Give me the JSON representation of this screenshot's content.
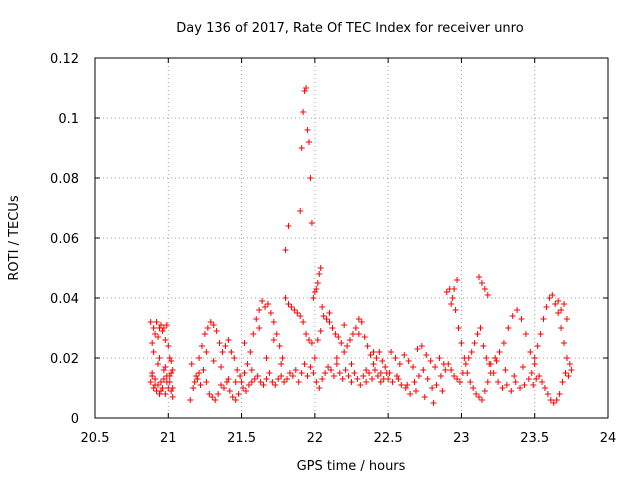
{
  "chart_data": {
    "type": "scatter",
    "title": "Day 136 of 2017, Rate Of TEC Index for receiver unro",
    "xlabel": "GPS time / hours",
    "ylabel": "ROTI / TECUs",
    "xlim": [
      20.5,
      24
    ],
    "ylim": [
      0,
      0.12
    ],
    "xticks": [
      "20.5",
      "21",
      "21.5",
      "22",
      "22.5",
      "23",
      "23.5",
      "24"
    ],
    "xtick_values": [
      20.5,
      21,
      21.5,
      22,
      22.5,
      23,
      23.5,
      24
    ],
    "yticks": [
      "0",
      "0.02",
      "0.04",
      "0.06",
      "0.08",
      "0.1",
      "0.12"
    ],
    "ytick_values": [
      0,
      0.02,
      0.04,
      0.06,
      0.08,
      0.1,
      0.12
    ],
    "grid": true,
    "marker": "+",
    "color": "#ff0000",
    "series": [
      {
        "name": "ROTI",
        "x": [
          20.88,
          20.89,
          20.9,
          20.91,
          20.92,
          20.93,
          20.94,
          20.95,
          20.96,
          20.97,
          20.98,
          20.99,
          21.0,
          21.01,
          21.02,
          21.03,
          20.88,
          20.89,
          20.9,
          20.91,
          20.92,
          20.93,
          20.94,
          20.95,
          20.96,
          20.97,
          20.98,
          20.99,
          21.0,
          21.01,
          21.02,
          21.03,
          20.89,
          20.91,
          20.93,
          20.95,
          20.97,
          20.99,
          21.01,
          21.03,
          20.9,
          20.94,
          20.98,
          21.02,
          21.15,
          21.17,
          21.19,
          21.21,
          21.23,
          21.25,
          21.27,
          21.29,
          21.31,
          21.33,
          21.35,
          21.37,
          21.39,
          21.41,
          21.43,
          21.45,
          21.47,
          21.49,
          21.18,
          21.2,
          21.22,
          21.24,
          21.26,
          21.28,
          21.3,
          21.32,
          21.34,
          21.36,
          21.38,
          21.4,
          21.42,
          21.44,
          21.46,
          21.48,
          21.16,
          21.21,
          21.26,
          21.31,
          21.36,
          21.41,
          21.46,
          21.5,
          21.52,
          21.54,
          21.56,
          21.58,
          21.6,
          21.62,
          21.64,
          21.66,
          21.68,
          21.7,
          21.72,
          21.74,
          21.76,
          21.78,
          21.51,
          21.53,
          21.55,
          21.57,
          21.59,
          21.61,
          21.63,
          21.65,
          21.67,
          21.69,
          21.71,
          21.73,
          21.75,
          21.77,
          21.79,
          21.52,
          21.57,
          21.62,
          21.67,
          21.72,
          21.77,
          21.8,
          21.82,
          21.84,
          21.86,
          21.88,
          21.9,
          21.92,
          21.94,
          21.96,
          21.98,
          21.81,
          21.83,
          21.85,
          21.87,
          21.89,
          21.91,
          21.93,
          21.95,
          21.97,
          21.99,
          21.8,
          21.82,
          21.9,
          21.91,
          21.92,
          21.93,
          21.94,
          21.95,
          21.96,
          21.97,
          21.98,
          21.99,
          22.0,
          22.01,
          22.02,
          22.03,
          22.04,
          22.0,
          22.02,
          22.04,
          22.06,
          22.08,
          22.1,
          22.12,
          22.14,
          22.16,
          22.18,
          22.2,
          22.22,
          22.24,
          22.26,
          22.28,
          22.3,
          22.32,
          22.34,
          22.36,
          22.38,
          22.4,
          22.42,
          22.44,
          22.46,
          22.48,
          22.01,
          22.03,
          22.05,
          22.07,
          22.09,
          22.11,
          22.13,
          22.15,
          22.17,
          22.19,
          22.21,
          22.23,
          22.25,
          22.27,
          22.29,
          22.31,
          22.33,
          22.35,
          22.37,
          22.39,
          22.41,
          22.43,
          22.45,
          22.47,
          22.49,
          22.05,
          22.1,
          22.15,
          22.2,
          22.25,
          22.3,
          22.35,
          22.4,
          22.45,
          22.5,
          22.53,
          22.56,
          22.59,
          22.62,
          22.65,
          22.68,
          22.71,
          22.74,
          22.77,
          22.8,
          22.83,
          22.86,
          22.89,
          22.52,
          22.55,
          22.58,
          22.61,
          22.64,
          22.67,
          22.7,
          22.73,
          22.76,
          22.79,
          22.82,
          22.85,
          22.88,
          22.51,
          22.57,
          22.63,
          22.69,
          22.75,
          22.81,
          22.87,
          22.9,
          22.92,
          22.94,
          22.96,
          22.98,
          23.0,
          23.02,
          23.04,
          23.06,
          23.08,
          23.1,
          23.12,
          23.14,
          23.16,
          23.18,
          23.2,
          22.91,
          22.93,
          22.95,
          22.97,
          22.99,
          23.01,
          23.03,
          23.05,
          23.07,
          23.09,
          23.11,
          23.13,
          23.15,
          23.17,
          23.19,
          22.93,
          22.95,
          22.97,
          23.12,
          23.14,
          23.16,
          23.18,
          23.2,
          23.23,
          23.26,
          23.29,
          23.32,
          23.35,
          23.38,
          23.41,
          23.44,
          23.47,
          23.5,
          23.22,
          23.25,
          23.28,
          23.31,
          23.34,
          23.37,
          23.4,
          23.43,
          23.46,
          23.49,
          23.24,
          23.3,
          23.36,
          23.42,
          23.48,
          23.5,
          23.52,
          23.54,
          23.56,
          23.58,
          23.6,
          23.62,
          23.64,
          23.66,
          23.68,
          23.7,
          23.72,
          23.74,
          23.51,
          23.53,
          23.55,
          23.57,
          23.59,
          23.61,
          23.63,
          23.65,
          23.67,
          23.69,
          23.71,
          23.73,
          23.75,
          23.66,
          23.68,
          23.7,
          23.72
        ],
        "y": [
          0.032,
          0.025,
          0.03,
          0.028,
          0.032,
          0.027,
          0.03,
          0.031,
          0.029,
          0.03,
          0.026,
          0.031,
          0.024,
          0.02,
          0.019,
          0.016,
          0.012,
          0.014,
          0.01,
          0.013,
          0.009,
          0.011,
          0.008,
          0.012,
          0.01,
          0.013,
          0.008,
          0.014,
          0.01,
          0.012,
          0.009,
          0.007,
          0.015,
          0.011,
          0.018,
          0.009,
          0.016,
          0.012,
          0.014,
          0.01,
          0.022,
          0.02,
          0.017,
          0.015,
          0.006,
          0.01,
          0.014,
          0.02,
          0.024,
          0.028,
          0.03,
          0.032,
          0.031,
          0.029,
          0.025,
          0.022,
          0.024,
          0.026,
          0.022,
          0.02,
          0.016,
          0.014,
          0.012,
          0.013,
          0.011,
          0.016,
          0.012,
          0.008,
          0.007,
          0.006,
          0.008,
          0.011,
          0.01,
          0.012,
          0.009,
          0.007,
          0.006,
          0.008,
          0.018,
          0.015,
          0.022,
          0.019,
          0.017,
          0.013,
          0.012,
          0.012,
          0.015,
          0.018,
          0.022,
          0.028,
          0.033,
          0.036,
          0.039,
          0.037,
          0.038,
          0.035,
          0.032,
          0.028,
          0.024,
          0.02,
          0.01,
          0.009,
          0.011,
          0.012,
          0.013,
          0.014,
          0.012,
          0.011,
          0.013,
          0.015,
          0.012,
          0.011,
          0.013,
          0.014,
          0.012,
          0.025,
          0.016,
          0.03,
          0.02,
          0.026,
          0.018,
          0.04,
          0.038,
          0.037,
          0.036,
          0.035,
          0.034,
          0.032,
          0.028,
          0.026,
          0.025,
          0.013,
          0.015,
          0.014,
          0.016,
          0.012,
          0.015,
          0.018,
          0.014,
          0.017,
          0.015,
          0.056,
          0.064,
          0.069,
          0.09,
          0.102,
          0.109,
          0.11,
          0.096,
          0.092,
          0.08,
          0.065,
          0.04,
          0.042,
          0.043,
          0.045,
          0.048,
          0.05,
          0.02,
          0.026,
          0.029,
          0.034,
          0.033,
          0.032,
          0.03,
          0.028,
          0.027,
          0.025,
          0.022,
          0.024,
          0.026,
          0.028,
          0.03,
          0.033,
          0.032,
          0.027,
          0.024,
          0.021,
          0.018,
          0.02,
          0.022,
          0.019,
          0.017,
          0.012,
          0.01,
          0.013,
          0.015,
          0.017,
          0.016,
          0.014,
          0.018,
          0.015,
          0.013,
          0.016,
          0.014,
          0.012,
          0.015,
          0.013,
          0.011,
          0.014,
          0.012,
          0.015,
          0.013,
          0.016,
          0.014,
          0.012,
          0.013,
          0.015,
          0.037,
          0.035,
          0.02,
          0.031,
          0.018,
          0.028,
          0.016,
          0.022,
          0.015,
          0.013,
          0.012,
          0.014,
          0.011,
          0.01,
          0.008,
          0.012,
          0.014,
          0.016,
          0.013,
          0.01,
          0.011,
          0.014,
          0.016,
          0.022,
          0.02,
          0.018,
          0.021,
          0.019,
          0.017,
          0.023,
          0.024,
          0.021,
          0.019,
          0.017,
          0.02,
          0.018,
          0.015,
          0.013,
          0.011,
          0.009,
          0.007,
          0.005,
          0.009,
          0.042,
          0.043,
          0.04,
          0.036,
          0.03,
          0.025,
          0.02,
          0.015,
          0.012,
          0.01,
          0.008,
          0.007,
          0.006,
          0.009,
          0.012,
          0.015,
          0.018,
          0.016,
          0.014,
          0.013,
          0.012,
          0.015,
          0.018,
          0.02,
          0.022,
          0.025,
          0.028,
          0.03,
          0.024,
          0.02,
          0.018,
          0.038,
          0.043,
          0.046,
          0.047,
          0.045,
          0.043,
          0.041,
          0.018,
          0.02,
          0.022,
          0.025,
          0.03,
          0.034,
          0.036,
          0.033,
          0.028,
          0.022,
          0.018,
          0.015,
          0.012,
          0.01,
          0.011,
          0.009,
          0.012,
          0.01,
          0.011,
          0.013,
          0.011,
          0.019,
          0.016,
          0.014,
          0.017,
          0.015,
          0.02,
          0.024,
          0.028,
          0.033,
          0.037,
          0.04,
          0.041,
          0.038,
          0.035,
          0.03,
          0.025,
          0.02,
          0.018,
          0.013,
          0.014,
          0.012,
          0.01,
          0.008,
          0.006,
          0.005,
          0.006,
          0.008,
          0.012,
          0.015,
          0.014,
          0.016,
          0.039,
          0.036,
          0.038,
          0.033
        ]
      }
    ]
  }
}
